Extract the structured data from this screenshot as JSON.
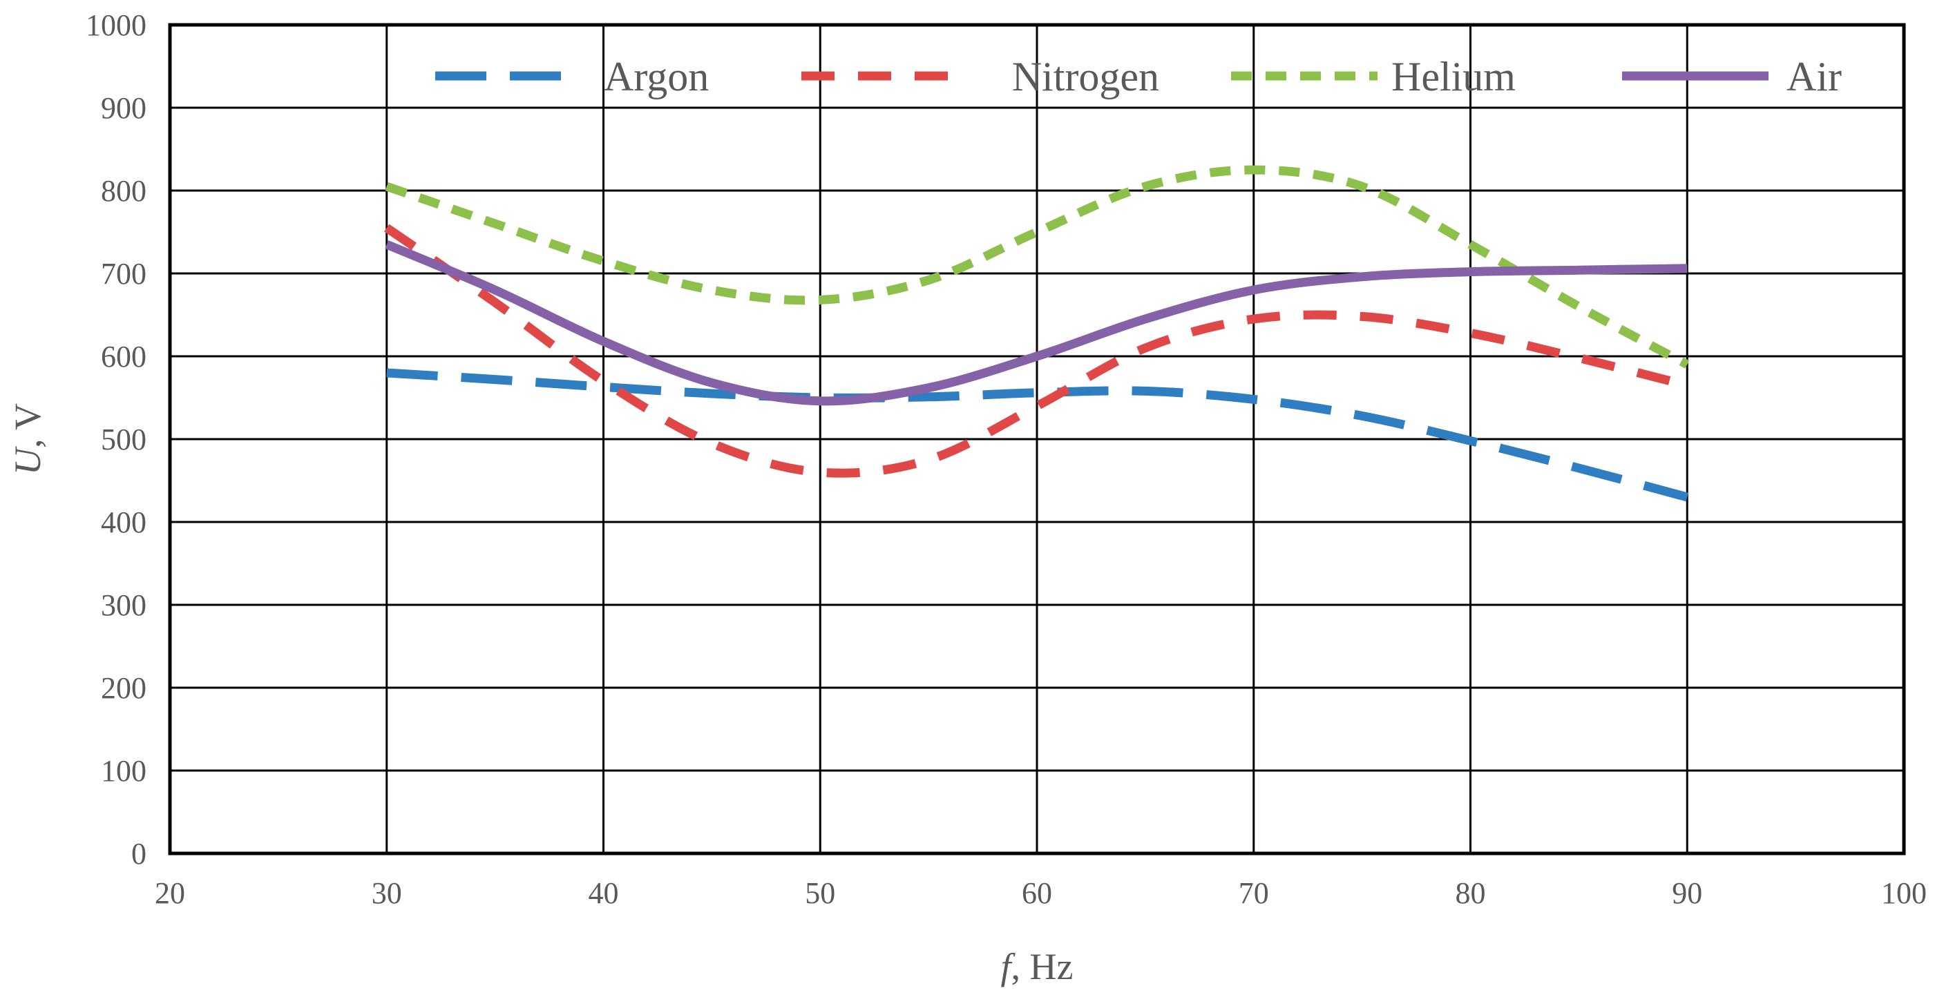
{
  "chart_data": {
    "type": "line",
    "title": "",
    "xlabel_var": "f",
    "xlabel_unit": ", Hz",
    "ylabel_var": "U",
    "ylabel_unit": ", V",
    "xlim": [
      20,
      100
    ],
    "ylim": [
      0,
      1000
    ],
    "xticks": [
      20,
      30,
      40,
      50,
      60,
      70,
      80,
      90,
      100
    ],
    "yticks": [
      0,
      100,
      200,
      300,
      400,
      500,
      600,
      700,
      800,
      900,
      1000
    ],
    "grid": true,
    "legend_position": "top",
    "series": [
      {
        "name": "Argon",
        "color": "#2E7EC1",
        "style": "long-dash",
        "x": [
          30,
          35,
          40,
          45,
          50,
          55,
          60,
          65,
          70,
          75,
          80,
          85,
          90
        ],
        "y": [
          580,
          572,
          563,
          555,
          550,
          551,
          556,
          558,
          548,
          528,
          498,
          465,
          430
        ]
      },
      {
        "name": "Nitrogen",
        "color": "#E04848",
        "style": "dash",
        "x": [
          30,
          35,
          40,
          45,
          50,
          55,
          60,
          65,
          70,
          75,
          80,
          85,
          90
        ],
        "y": [
          755,
          665,
          570,
          495,
          460,
          475,
          540,
          610,
          645,
          648,
          628,
          598,
          565
        ]
      },
      {
        "name": "Helium",
        "color": "#8CC04B",
        "style": "short-dash",
        "x": [
          30,
          35,
          40,
          45,
          50,
          55,
          60,
          65,
          70,
          75,
          80,
          85,
          90
        ],
        "y": [
          805,
          760,
          715,
          680,
          668,
          692,
          750,
          805,
          825,
          805,
          735,
          660,
          590
        ]
      },
      {
        "name": "Air",
        "color": "#8561A8",
        "style": "solid",
        "x": [
          30,
          35,
          40,
          45,
          50,
          55,
          60,
          65,
          70,
          75,
          80,
          85,
          90
        ],
        "y": [
          735,
          680,
          618,
          568,
          546,
          562,
          600,
          645,
          680,
          696,
          702,
          704,
          706
        ]
      }
    ]
  }
}
